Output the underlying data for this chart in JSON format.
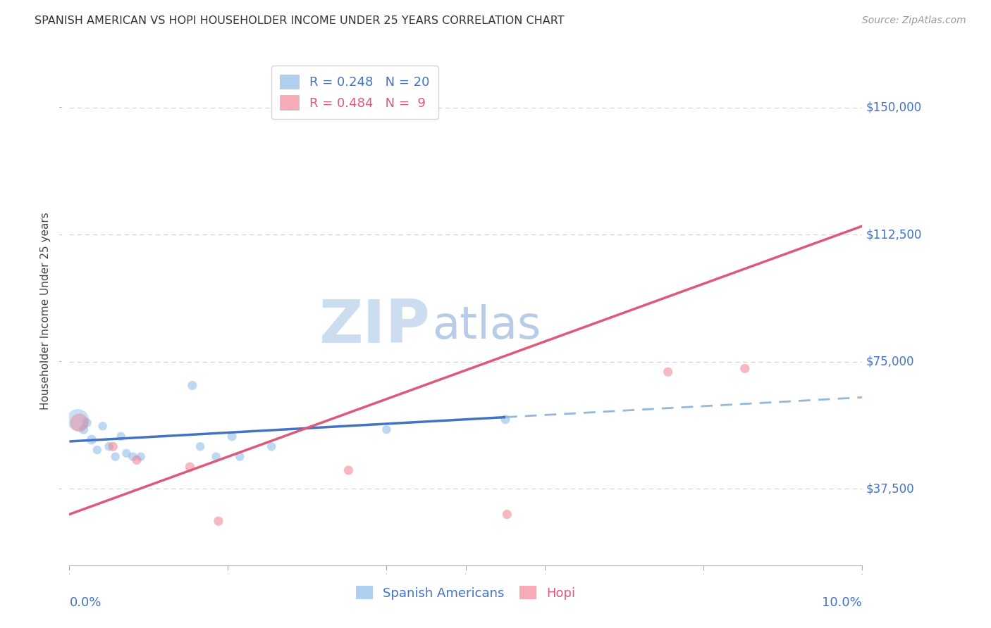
{
  "title": "SPANISH AMERICAN VS HOPI HOUSEHOLDER INCOME UNDER 25 YEARS CORRELATION CHART",
  "source": "Source: ZipAtlas.com",
  "ylabel": "Householder Income Under 25 years",
  "y_ticks": [
    37500,
    75000,
    112500,
    150000
  ],
  "y_tick_labels": [
    "$37,500",
    "$75,000",
    "$112,500",
    "$150,000"
  ],
  "x_min": 0.0,
  "x_max": 10.0,
  "y_min": 15000,
  "y_max": 165000,
  "blue_color": "#85b8e8",
  "pink_color": "#f08090",
  "blue_line_color": "#4472c4",
  "pink_line_color": "#e05878",
  "dashed_line_color": "#95b8d8",
  "watermark_zip_color": "#ccddf0",
  "watermark_atlas_color": "#b8cce8",
  "background_color": "#ffffff",
  "grid_color": "#cccccc",
  "spanish_x": [
    0.1,
    0.18,
    0.22,
    0.28,
    0.35,
    0.42,
    0.5,
    0.58,
    0.65,
    0.72,
    0.8,
    0.9,
    1.55,
    1.65,
    1.85,
    2.05,
    2.15,
    2.55,
    4.0,
    5.5
  ],
  "spanish_y": [
    58000,
    55000,
    57000,
    52000,
    49000,
    56000,
    50000,
    47000,
    53000,
    48000,
    47000,
    47000,
    68000,
    50000,
    47000,
    53000,
    47000,
    50000,
    55000,
    58000
  ],
  "spanish_sizes": [
    160,
    90,
    90,
    100,
    80,
    80,
    80,
    80,
    80,
    80,
    80,
    80,
    90,
    80,
    80,
    90,
    80,
    80,
    80,
    90
  ],
  "spanish_big_idx": 0,
  "spanish_big_size": 500,
  "hopi_x": [
    0.12,
    0.55,
    0.85,
    1.52,
    1.88,
    3.52,
    5.52,
    7.55,
    8.52
  ],
  "hopi_y": [
    57000,
    50000,
    46000,
    44000,
    28000,
    43000,
    30000,
    72000,
    73000
  ],
  "hopi_sizes": [
    350,
    90,
    90,
    90,
    90,
    90,
    90,
    90,
    90
  ],
  "blue_line_x_solid_end": 5.5,
  "blue_line_intercept": 51500,
  "blue_line_slope": 1300,
  "pink_line_intercept": 30000,
  "pink_line_slope": 8500
}
